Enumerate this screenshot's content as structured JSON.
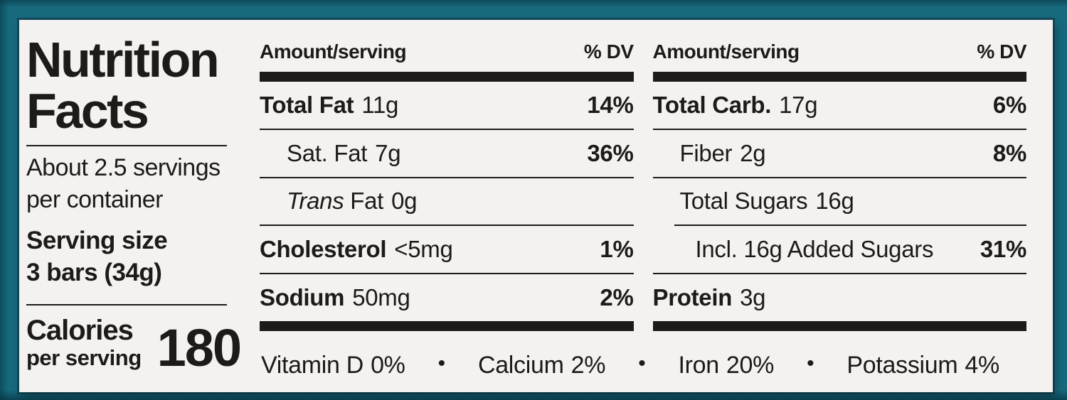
{
  "colors": {
    "background_teal": "#17697d",
    "label_background": "#f3f2f0",
    "ink": "#1d1a17"
  },
  "label": {
    "title": {
      "line1": "Nutrition",
      "line2": "Facts"
    },
    "servings_per_container": {
      "line1": "About 2.5 servings",
      "line2": "per container"
    },
    "serving_size": {
      "label": "Serving size",
      "value": "3 bars (34g)"
    },
    "calories": {
      "label": "Calories",
      "sublabel": "per serving",
      "value": "180"
    },
    "columns": [
      {
        "header": {
          "amount": "Amount/serving",
          "dv": "% DV"
        },
        "rows": [
          {
            "name": "Total Fat",
            "value": "11g",
            "dv": "14%"
          },
          {
            "name": "Sat. Fat",
            "value": "7g",
            "dv": "36%"
          },
          {
            "name_italic": "Trans",
            "name_rest": " Fat",
            "value": "0g",
            "dv": ""
          },
          {
            "name": "Cholesterol",
            "value": "<5mg",
            "dv": "1%"
          },
          {
            "name": "Sodium",
            "value": "50mg",
            "dv": "2%"
          }
        ]
      },
      {
        "header": {
          "amount": "Amount/serving",
          "dv": "% DV"
        },
        "rows": [
          {
            "name": "Total Carb.",
            "value": "17g",
            "dv": "6%"
          },
          {
            "name": "Fiber",
            "value": "2g",
            "dv": "8%"
          },
          {
            "name": "Total Sugars",
            "value": "16g",
            "dv": ""
          },
          {
            "name": "Incl. 16g Added Sugars",
            "value": "",
            "dv": "31%"
          },
          {
            "name": "Protein",
            "value": "3g",
            "dv": ""
          }
        ]
      }
    ],
    "micronutrients": {
      "bullet": "•",
      "items": [
        {
          "name": "Vitamin D",
          "dv": "0%"
        },
        {
          "name": "Calcium",
          "dv": "2%"
        },
        {
          "name": "Iron",
          "dv": "20%"
        },
        {
          "name": "Potassium",
          "dv": "4%"
        }
      ]
    }
  }
}
